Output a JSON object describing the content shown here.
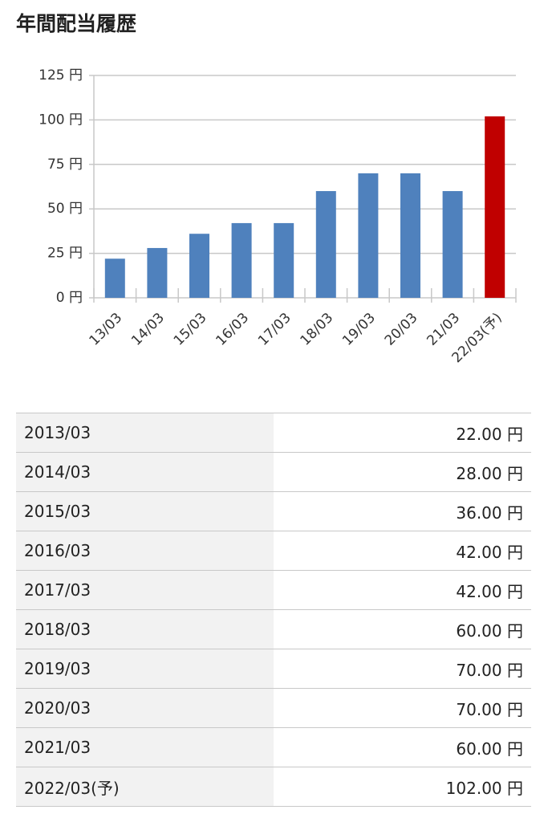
{
  "title": "年間配当履歴",
  "chart_data": {
    "type": "bar",
    "categories": [
      "13/03",
      "14/03",
      "15/03",
      "16/03",
      "17/03",
      "18/03",
      "19/03",
      "20/03",
      "21/03",
      "22/03(予)"
    ],
    "values": [
      22,
      28,
      36,
      42,
      42,
      60,
      70,
      70,
      60,
      102
    ],
    "colors": [
      "#4f81bd",
      "#4f81bd",
      "#4f81bd",
      "#4f81bd",
      "#4f81bd",
      "#4f81bd",
      "#4f81bd",
      "#4f81bd",
      "#4f81bd",
      "#c00000"
    ],
    "ylim": [
      0,
      125
    ],
    "yticks": [
      {
        "value": 0,
        "label": "0 円"
      },
      {
        "value": 25,
        "label": "25 円"
      },
      {
        "value": 50,
        "label": "50 円"
      },
      {
        "value": 75,
        "label": "75 円"
      },
      {
        "value": 100,
        "label": "100 円"
      },
      {
        "value": 125,
        "label": "125 円"
      }
    ],
    "grid": true
  },
  "table": {
    "rows": [
      [
        "2013/03",
        "22.00 円"
      ],
      [
        "2014/03",
        "28.00 円"
      ],
      [
        "2015/03",
        "36.00 円"
      ],
      [
        "2016/03",
        "42.00 円"
      ],
      [
        "2017/03",
        "42.00 円"
      ],
      [
        "2018/03",
        "60.00 円"
      ],
      [
        "2019/03",
        "70.00 円"
      ],
      [
        "2020/03",
        "70.00 円"
      ],
      [
        "2021/03",
        "60.00 円"
      ],
      [
        "2022/03(予)",
        "102.00 円"
      ]
    ]
  }
}
